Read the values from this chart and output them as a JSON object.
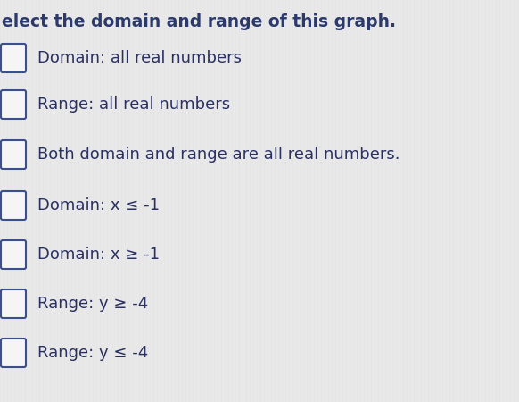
{
  "title_line1": "elect the domain and range of this graph.",
  "title_color": "#2b3a6b",
  "title_fontsize": 13.5,
  "title_bold": true,
  "background_color": "#e8e8e8",
  "checkbox_facecolor": "#f5f5f5",
  "checkbox_edgecolor": "#3a4f8c",
  "text_color": "#2a3060",
  "options": [
    "Domain: all real numbers",
    "Range: all real numbers",
    "Both domain and range are all real numbers.",
    "Domain: x ≤ -1",
    "Domain: x ≥ -1",
    "Range: y ≥ -4",
    "Range: y ≤ -4"
  ],
  "option_fontsize": 13.0
}
